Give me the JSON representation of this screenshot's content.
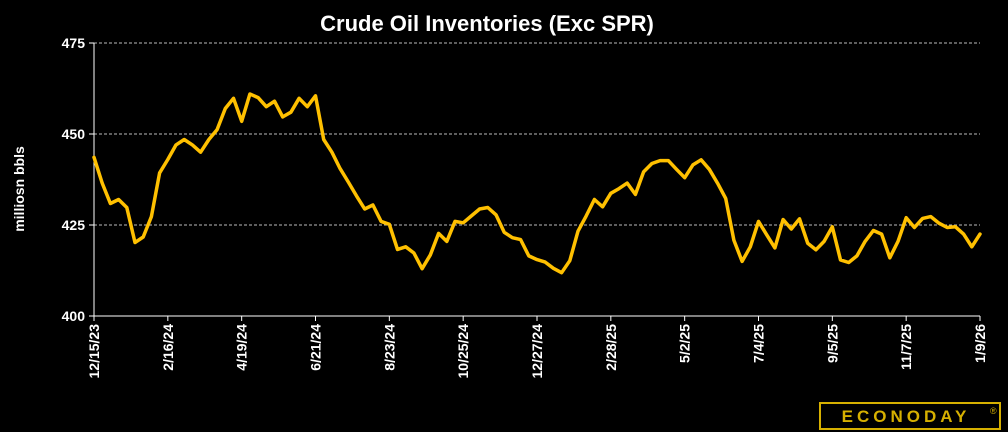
{
  "chart_data": {
    "type": "line",
    "title": "Crude Oil Inventories (Exc SPR)",
    "xlabel": "",
    "ylabel": "milliosn bbls",
    "ylim": [
      400,
      475
    ],
    "yticks": [
      400,
      425,
      450,
      475
    ],
    "grid": "horizontal dashed",
    "line_color": "#FFC000",
    "xtick_labels": [
      "12/15/23",
      "2/16/24",
      "4/19/24",
      "6/21/24",
      "8/23/24",
      "10/25/24",
      "12/27/24",
      "2/28/25",
      "5/2/25",
      "7/4/25",
      "9/5/25",
      "11/7/25",
      "1/9/26"
    ],
    "series": [
      {
        "values": [
          443.6,
          436.5,
          430.9,
          432.0,
          429.8,
          420.2,
          421.7,
          427.3,
          439.3,
          443.0,
          447.0,
          448.5,
          447.0,
          445.0,
          448.5,
          451.2,
          457.0,
          459.8,
          453.5,
          461.0,
          460.0,
          457.5,
          459.0,
          454.7,
          456.0,
          459.8,
          457.5,
          460.5,
          448.5,
          445.0,
          440.5,
          436.8,
          433.0,
          429.4,
          430.5,
          426.0,
          425.2,
          418.3,
          419.0,
          417.3,
          413.0,
          416.8,
          422.7,
          420.5,
          426.0,
          425.6,
          427.5,
          429.4,
          429.8,
          427.8,
          423.0,
          421.5,
          421.0,
          416.5,
          415.5,
          414.8,
          413.1,
          411.9,
          415.2,
          423.3,
          427.5,
          432.0,
          430.0,
          433.7,
          435.0,
          436.5,
          433.4,
          439.6,
          441.9,
          442.7,
          442.7,
          440.3,
          438.0,
          441.5,
          442.9,
          440.3,
          436.5,
          432.3,
          420.8,
          415.0,
          419.0,
          426.0,
          422.3,
          418.7,
          426.5,
          423.9,
          426.7,
          420.0,
          418.2,
          420.5,
          424.5,
          415.4,
          414.7,
          416.5,
          420.5,
          423.5,
          422.5,
          416.0,
          420.5,
          427.0,
          424.3,
          426.8,
          427.3,
          425.5,
          424.3,
          424.5,
          422.5,
          419.0,
          422.5
        ]
      }
    ]
  },
  "branding": {
    "logo_text": "ECONODAY",
    "trademark": "®",
    "logo_color": "#D6B000"
  }
}
